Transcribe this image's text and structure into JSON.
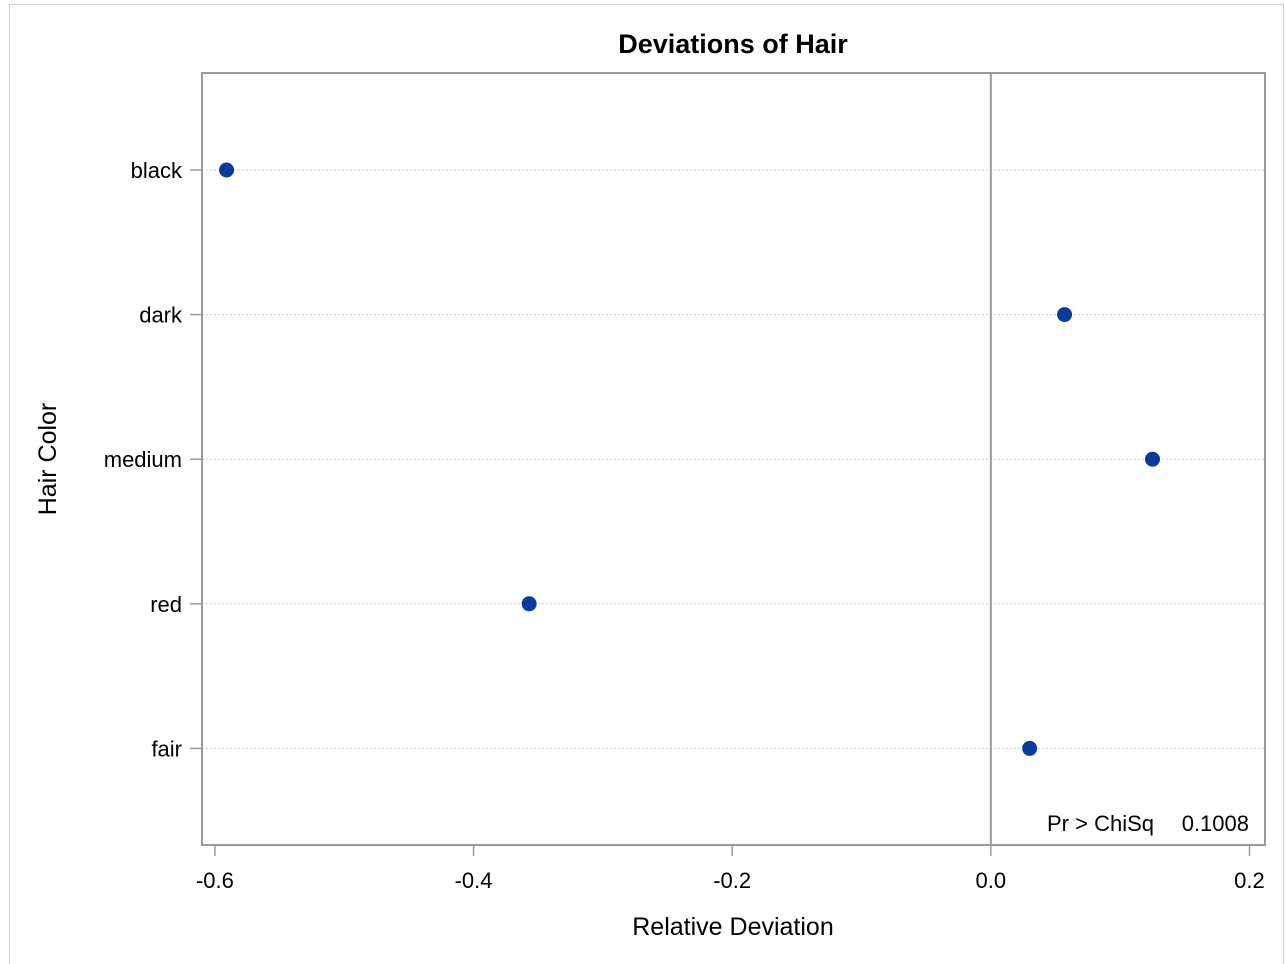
{
  "chart_data": {
    "type": "scatter",
    "title": "Deviations of Hair",
    "xlabel": "Relative Deviation",
    "ylabel": "Hair Color",
    "categories": [
      "black",
      "dark",
      "medium",
      "red",
      "fair"
    ],
    "series": [
      {
        "values": [
          -0.591,
          0.057,
          0.125,
          -0.357,
          0.03
        ]
      }
    ],
    "xlim": [
      -0.61,
      0.212
    ],
    "xticks": [
      -0.6,
      -0.4,
      -0.2,
      0.0,
      0.2
    ],
    "xtick_labels": [
      "-0.6",
      "-0.4",
      "-0.2",
      "0.0",
      "0.2"
    ],
    "reference_line_x": 0.0,
    "horizontal_grid": true,
    "marker_color": "#0a3b9c",
    "inset": {
      "label": "Pr > ChiSq",
      "value": "0.1008"
    }
  }
}
